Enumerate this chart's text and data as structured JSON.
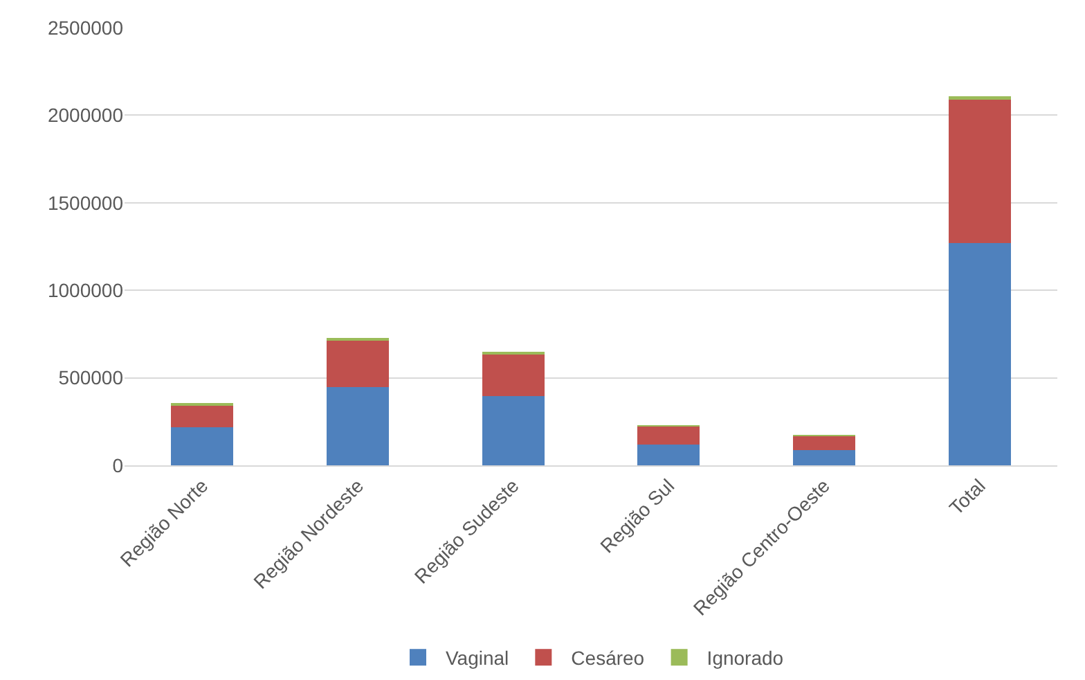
{
  "chart_data": {
    "type": "bar",
    "stacked": true,
    "categories": [
      "Região Norte",
      "Região Nordeste",
      "Região Sudeste",
      "Região Sul",
      "Região Centro-Oeste",
      "Total"
    ],
    "series": [
      {
        "name": "Vaginal",
        "color": "#4f81bd",
        "values": [
          218000,
          449000,
          396000,
          118000,
          88000,
          1270000
        ]
      },
      {
        "name": "Cesáreo",
        "color": "#c0504d",
        "values": [
          126000,
          268000,
          243000,
          104000,
          80000,
          820000
        ]
      },
      {
        "name": "Ignorado",
        "color": "#9bbb59",
        "values": [
          8000,
          10000,
          8000,
          6000,
          5000,
          20000
        ]
      }
    ],
    "ylim": [
      0,
      2500000
    ],
    "yticks": [
      0,
      500000,
      1000000,
      1500000,
      2000000,
      2500000
    ],
    "grid": "y",
    "legend": "bottom"
  }
}
